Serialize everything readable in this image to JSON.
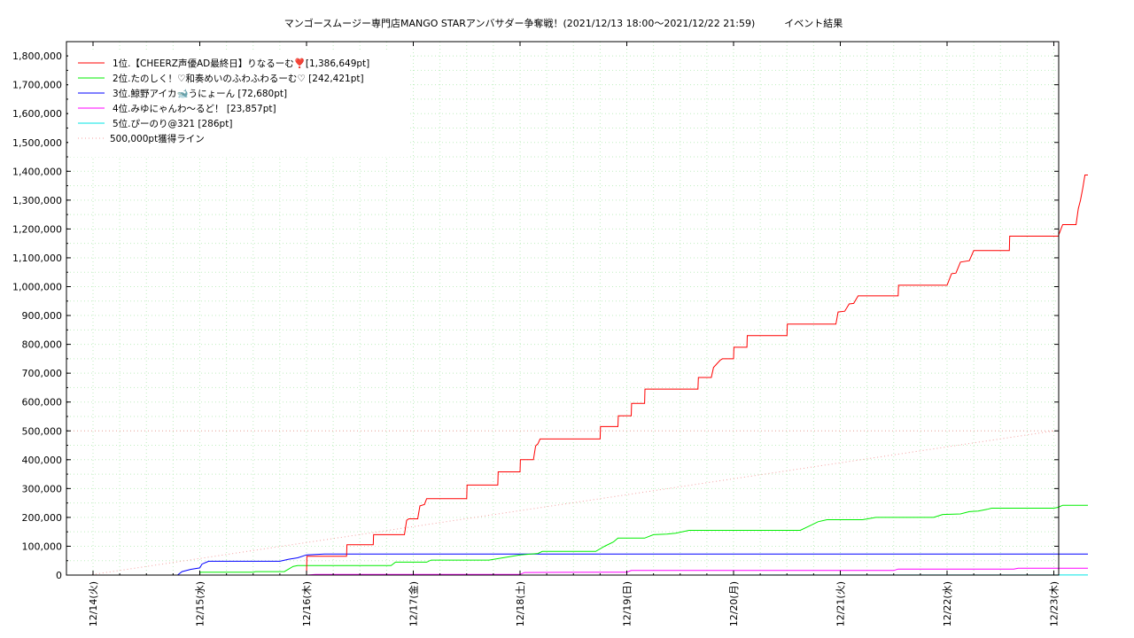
{
  "chart_data": {
    "type": "line",
    "title": "マンゴースムージー専門店MANGO STARアンバサダー争奪戦！(2021/12/13 18:00～2021/12/22 21:59)　　　イベント結果",
    "x_ticks": [
      "12/14(火)",
      "12/15(水)",
      "12/16(木)",
      "12/17(金)",
      "12/18(土)",
      "12/19(日)",
      "12/20(月)",
      "12/21(火)",
      "12/22(水)",
      "12/23(木)"
    ],
    "y_ticks": [
      "0",
      "100,000",
      "200,000",
      "300,000",
      "400,000",
      "500,000",
      "600,000",
      "700,000",
      "800,000",
      "900,000",
      "1,000,000",
      "1,100,000",
      "1,200,000",
      "1,300,000",
      "1,400,000",
      "1,500,000",
      "1,600,000",
      "1,700,000",
      "1,800,000"
    ],
    "xlim": [
      "2021/12/13 23:00",
      "2021/12/23 00:00"
    ],
    "ylim": [
      0,
      1850000
    ],
    "grid": true,
    "legend_position": "top-left",
    "series": [
      {
        "name": "1位.【CHEERZ声優AD最終日】りなるーむ❣️[1,386,649pt]",
        "color": "#ff0000",
        "points": [
          [
            "12/13 18:00",
            0
          ],
          [
            "12/16 00:00",
            0
          ],
          [
            "12/16 00:05",
            65000
          ],
          [
            "12/16 09:00",
            65000
          ],
          [
            "12/16 09:05",
            105000
          ],
          [
            "12/16 15:00",
            105000
          ],
          [
            "12/16 15:05",
            140000
          ],
          [
            "12/16 22:00",
            140000
          ],
          [
            "12/16 22:30",
            190000
          ],
          [
            "12/16 23:00",
            195000
          ],
          [
            "12/17 01:00",
            195000
          ],
          [
            "12/17 01:30",
            240000
          ],
          [
            "12/17 02:30",
            245000
          ],
          [
            "12/17 03:00",
            265000
          ],
          [
            "12/17 12:00",
            265000
          ],
          [
            "12/17 12:05",
            312000
          ],
          [
            "12/17 19:00",
            312000
          ],
          [
            "12/17 19:05",
            358000
          ],
          [
            "12/18 00:00",
            358000
          ],
          [
            "12/18 00:05",
            400000
          ],
          [
            "12/18 03:00",
            400000
          ],
          [
            "12/18 03:30",
            448000
          ],
          [
            "12/18 04:00",
            455000
          ],
          [
            "12/18 04:30",
            472000
          ],
          [
            "12/18 18:00",
            472000
          ],
          [
            "12/18 18:05",
            515000
          ],
          [
            "12/18 22:00",
            515000
          ],
          [
            "12/18 22:05",
            552000
          ],
          [
            "12/19 01:00",
            552000
          ],
          [
            "12/19 01:05",
            595000
          ],
          [
            "12/19 04:00",
            595000
          ],
          [
            "12/19 04:05",
            645000
          ],
          [
            "12/19 16:00",
            645000
          ],
          [
            "12/19 16:05",
            685000
          ],
          [
            "12/19 19:00",
            685000
          ],
          [
            "12/19 19:30",
            720000
          ],
          [
            "12/19 21:00",
            745000
          ],
          [
            "12/19 21:30",
            750000
          ],
          [
            "12/20 00:00",
            750000
          ],
          [
            "12/20 00:05",
            790000
          ],
          [
            "12/20 03:00",
            790000
          ],
          [
            "12/20 03:05",
            830000
          ],
          [
            "12/20 12:00",
            830000
          ],
          [
            "12/20 12:05",
            870000
          ],
          [
            "12/20 23:00",
            870000
          ],
          [
            "12/20 23:30",
            912000
          ],
          [
            "12/21 01:00",
            915000
          ],
          [
            "12/21 02:00",
            940000
          ],
          [
            "12/21 03:00",
            942000
          ],
          [
            "12/21 04:00",
            968000
          ],
          [
            "12/21 13:00",
            968000
          ],
          [
            "12/21 13:05",
            1005000
          ],
          [
            "12/22 00:00",
            1005000
          ],
          [
            "12/22 01:00",
            1045000
          ],
          [
            "12/22 02:00",
            1047000
          ],
          [
            "12/22 03:00",
            1085000
          ],
          [
            "12/22 05:00",
            1090000
          ],
          [
            "12/22 06:00",
            1125000
          ],
          [
            "12/22 14:00",
            1125000
          ],
          [
            "12/22 14:05",
            1175000
          ],
          [
            "12/23 01:00",
            1175000
          ],
          [
            "12/23 02:00",
            1215000
          ],
          [
            "12/23 05:00",
            1215000
          ],
          [
            "12/23 05:30",
            1270000
          ],
          [
            "12/23 06:00",
            1300000
          ],
          [
            "12/23 06:30",
            1340000
          ],
          [
            "12/23 07:00",
            1387000
          ],
          [
            "12/23 07:40",
            1387000
          ]
        ]
      },
      {
        "name": "2位.たのしく！♡和奏めいのふわふわるーむ♡ [242,421pt]",
        "color": "#00ee00",
        "points": [
          [
            "12/15 00:00",
            0
          ],
          [
            "12/15 00:05",
            10000
          ],
          [
            "12/15 12:00",
            10000
          ],
          [
            "12/15 12:30",
            12000
          ],
          [
            "12/15 19:00",
            12000
          ],
          [
            "12/15 21:00",
            30000
          ],
          [
            "12/15 22:00",
            33000
          ],
          [
            "12/16 19:00",
            33000
          ],
          [
            "12/16 20:00",
            45000
          ],
          [
            "12/17 03:00",
            45000
          ],
          [
            "12/17 04:00",
            52000
          ],
          [
            "12/17 17:00",
            52000
          ],
          [
            "12/18 00:00",
            70000
          ],
          [
            "12/18 04:00",
            75000
          ],
          [
            "12/18 05:00",
            82000
          ],
          [
            "12/18 17:00",
            82000
          ],
          [
            "12/18 19:00",
            100000
          ],
          [
            "12/18 21:00",
            115000
          ],
          [
            "12/18 22:00",
            128000
          ],
          [
            "12/19 04:00",
            128000
          ],
          [
            "12/19 06:00",
            140000
          ],
          [
            "12/19 09:00",
            142000
          ],
          [
            "12/19 11:00",
            145000
          ],
          [
            "12/19 14:00",
            155000
          ],
          [
            "12/20 15:00",
            155000
          ],
          [
            "12/20 17:00",
            170000
          ],
          [
            "12/20 19:00",
            185000
          ],
          [
            "12/20 21:00",
            192000
          ],
          [
            "12/21 05:00",
            192000
          ],
          [
            "12/21 08:00",
            200000
          ],
          [
            "12/21 21:00",
            200000
          ],
          [
            "12/21 23:00",
            210000
          ],
          [
            "12/22 03:00",
            212000
          ],
          [
            "12/22 05:00",
            220000
          ],
          [
            "12/22 07:00",
            222000
          ],
          [
            "12/22 09:00",
            228000
          ],
          [
            "12/22 10:00",
            232000
          ],
          [
            "12/23 00:00",
            232000
          ],
          [
            "12/23 01:00",
            235000
          ],
          [
            "12/23 02:00",
            242000
          ],
          [
            "12/23 07:40",
            242000
          ]
        ]
      },
      {
        "name": "3位.鯨野アイカ🐋うにょーん [72,680pt]",
        "color": "#0000ff",
        "points": [
          [
            "12/14 19:00",
            0
          ],
          [
            "12/14 20:00",
            12000
          ],
          [
            "12/14 22:00",
            20000
          ],
          [
            "12/15 00:00",
            25000
          ],
          [
            "12/15 00:30",
            38000
          ],
          [
            "12/15 02:00",
            48000
          ],
          [
            "12/15 18:00",
            48000
          ],
          [
            "12/15 20:00",
            55000
          ],
          [
            "12/15 22:00",
            60000
          ],
          [
            "12/16 00:00",
            70000
          ],
          [
            "12/16 04:00",
            73000
          ],
          [
            "12/23 07:40",
            73000
          ]
        ]
      },
      {
        "name": "4位.みゆにゃんわ〜るど！ [23,857pt]",
        "color": "#ff00ff",
        "points": [
          [
            "12/16 00:00",
            0
          ],
          [
            "12/16 02:00",
            2000
          ],
          [
            "12/18 00:00",
            2000
          ],
          [
            "12/18 01:00",
            9000
          ],
          [
            "12/18 21:00",
            10000
          ],
          [
            "12/19 00:00",
            10000
          ],
          [
            "12/19 01:00",
            16000
          ],
          [
            "12/21 12:00",
            16000
          ],
          [
            "12/21 13:00",
            21000
          ],
          [
            "12/22 15:00",
            21000
          ],
          [
            "12/22 16:00",
            24000
          ],
          [
            "12/23 07:40",
            24000
          ]
        ]
      },
      {
        "name": "5位.ぴーのり@321 [286pt]",
        "color": "#00e5e5",
        "points": [
          [
            "12/14 00:00",
            0
          ],
          [
            "12/23 07:40",
            286
          ]
        ]
      },
      {
        "name": "500,000pt獲得ライン",
        "color": "#f4a0a0",
        "dotted": true,
        "points": [
          [
            "12/13 23:00",
            0
          ],
          [
            "12/23 00:00",
            500000
          ]
        ]
      }
    ],
    "reference_line": {
      "value": 500000,
      "color": "#f4a0a0"
    }
  }
}
